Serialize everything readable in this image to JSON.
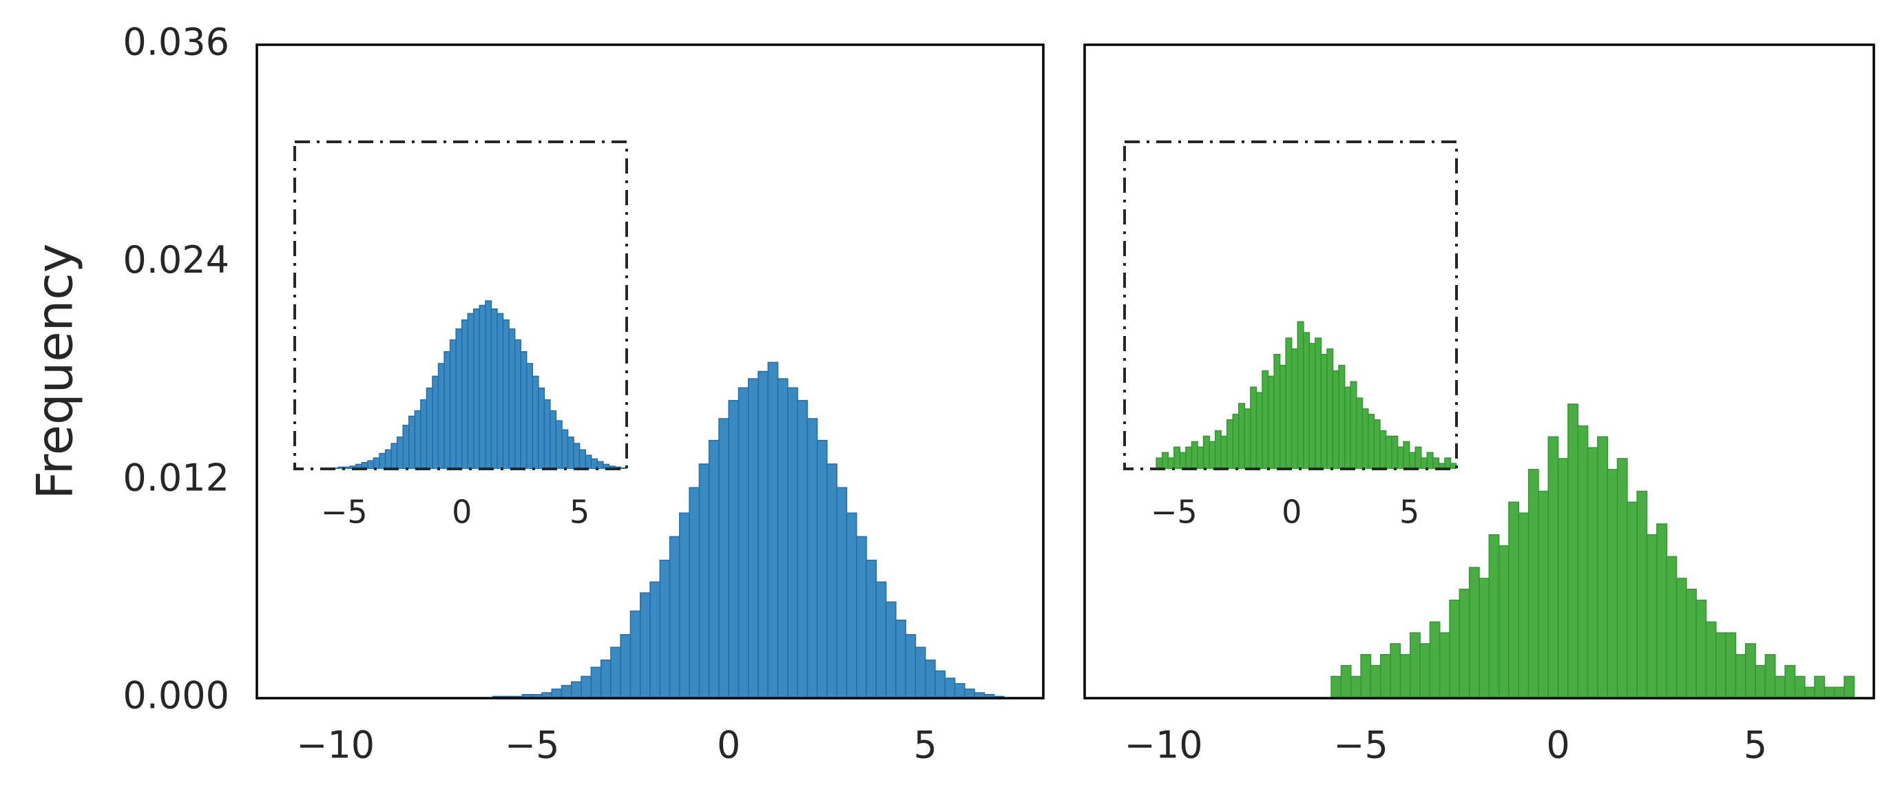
{
  "chart_data": [
    {
      "type": "histogram",
      "ylabel": "Frequency",
      "color": "#3a89c0",
      "edgecolor": "#1f6fae",
      "bins": [
        -6,
        -5.75,
        -5.5,
        -5.25,
        -5,
        -4.75,
        -4.5,
        -4.25,
        -4,
        -3.75,
        -3.5,
        -3.25,
        -3,
        -2.75,
        -2.5,
        -2.25,
        -2,
        -1.75,
        -1.5,
        -1.25,
        -1,
        -0.75,
        -0.5,
        -0.25,
        0,
        0.25,
        0.5,
        0.75,
        1,
        1.25,
        1.5,
        1.75,
        2,
        2.25,
        2.5,
        2.75,
        3,
        3.25,
        3.5,
        3.75,
        4,
        4.25,
        4.5,
        4.75,
        5,
        5.25,
        5.5,
        5.75,
        6,
        6.25,
        6.5,
        6.75,
        7
      ],
      "values": [
        0.0001,
        0.0001,
        0.0001,
        0.0002,
        0.0002,
        0.0003,
        0.0005,
        0.0007,
        0.0009,
        0.0012,
        0.0017,
        0.0021,
        0.0028,
        0.0035,
        0.0048,
        0.0058,
        0.0064,
        0.0076,
        0.0089,
        0.0102,
        0.0116,
        0.0129,
        0.0142,
        0.0154,
        0.0164,
        0.0171,
        0.0176,
        0.018,
        0.0185,
        0.0176,
        0.0171,
        0.0164,
        0.0154,
        0.0142,
        0.0129,
        0.0116,
        0.0102,
        0.0089,
        0.0076,
        0.0064,
        0.0053,
        0.0043,
        0.0035,
        0.0028,
        0.0021,
        0.0015,
        0.0011,
        0.0008,
        0.0005,
        0.0003,
        0.0002,
        0.0001
      ],
      "xlim": [
        -12,
        8
      ],
      "xticks": [
        {
          "value": -10,
          "label": "−10"
        },
        {
          "value": -5,
          "label": "−5"
        },
        0,
        5
      ],
      "ylim": [
        0,
        0.036
      ],
      "yticks": [
        {
          "value": 0,
          "label": "0.000"
        },
        0.012,
        0.024,
        0.036
      ],
      "inset": {
        "xlim": [
          -7.1,
          7
        ],
        "xticks": [
          {
            "value": -5,
            "label": "−5"
          },
          0,
          5
        ],
        "ylim": [
          0,
          0.036
        ]
      }
    },
    {
      "type": "histogram",
      "color": "#4aad44",
      "edgecolor": "#2c9a2c",
      "bins": [
        -5.75,
        -5.5,
        -5.25,
        -5,
        -4.75,
        -4.5,
        -4.25,
        -4,
        -3.75,
        -3.5,
        -3.25,
        -3,
        -2.75,
        -2.5,
        -2.25,
        -2,
        -1.75,
        -1.5,
        -1.25,
        -1,
        -0.75,
        -0.5,
        -0.25,
        0,
        0.25,
        0.5,
        0.75,
        1,
        1.25,
        1.5,
        1.75,
        2,
        2.25,
        2.5,
        2.75,
        3,
        3.25,
        3.5,
        3.75,
        4,
        4.25,
        4.5,
        4.75,
        5,
        5.25,
        5.5,
        5.75,
        6,
        6.25,
        6.5,
        6.75,
        7,
        7.25,
        7.5
      ],
      "values": [
        0.0012,
        0.0018,
        0.0012,
        0.0024,
        0.0018,
        0.0024,
        0.003,
        0.0024,
        0.0036,
        0.003,
        0.0042,
        0.0036,
        0.0054,
        0.006,
        0.0072,
        0.0066,
        0.009,
        0.0084,
        0.0108,
        0.0102,
        0.0126,
        0.0114,
        0.0144,
        0.0132,
        0.0162,
        0.015,
        0.0138,
        0.0144,
        0.0126,
        0.0132,
        0.0108,
        0.0114,
        0.009,
        0.0096,
        0.0078,
        0.0066,
        0.006,
        0.0054,
        0.0042,
        0.0036,
        0.0036,
        0.0024,
        0.003,
        0.0018,
        0.0024,
        0.0012,
        0.0018,
        0.0012,
        0.0006,
        0.0012,
        0.0006,
        0.0006,
        0.0012
      ],
      "xlim": [
        -12,
        8
      ],
      "xticks": [
        {
          "value": -10,
          "label": "−10"
        },
        {
          "value": -5,
          "label": "−5"
        },
        0,
        5
      ],
      "ylim": [
        0,
        0.036
      ],
      "inset": {
        "xlim": [
          -7.1,
          7
        ],
        "xticks": [
          {
            "value": -5,
            "label": "−5"
          },
          0,
          5
        ],
        "ylim": [
          0,
          0.036
        ]
      }
    }
  ]
}
